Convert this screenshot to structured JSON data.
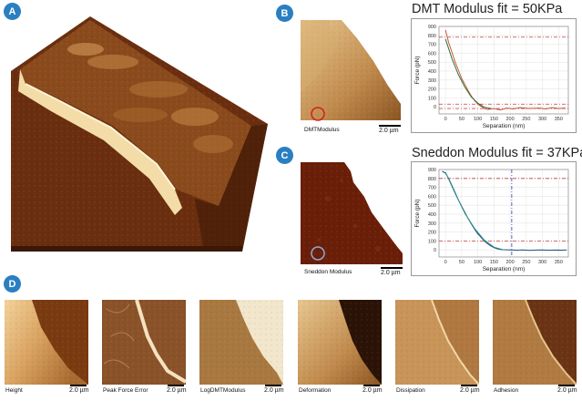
{
  "panels": {
    "a": {
      "label": "A"
    },
    "b": {
      "label": "B",
      "image_caption": "DMTModulus",
      "scale": "2.0 µm"
    },
    "c": {
      "label": "C",
      "image_caption": "Sneddon Modulus",
      "scale": "2.0 µm"
    },
    "d": {
      "label": "D"
    }
  },
  "thumbnails": [
    {
      "caption": "Height",
      "scale": "2.0 µm"
    },
    {
      "caption": "Peak Force Error",
      "scale": "2.0 µm"
    },
    {
      "caption": "LogDMTModulus",
      "scale": "2.0 µm"
    },
    {
      "caption": "Deformation",
      "scale": "2.0 µm"
    },
    {
      "caption": "Dissipation",
      "scale": "2.0 µm"
    },
    {
      "caption": "Adhesion",
      "scale": "2.0 µm"
    }
  ],
  "colors": {
    "badge": "#2a7fc1",
    "dmt_marker": "#d42020",
    "sneddon_marker": "#8fa8d8"
  },
  "chart_data": [
    {
      "type": "line",
      "title": "DMT Modulus fit = 50KPa",
      "xlabel": "Separation (nm)",
      "ylabel": "Force (pN)",
      "xlim": [
        -20,
        380
      ],
      "ylim": [
        -80,
        900
      ],
      "xticks": [
        0,
        50,
        100,
        150,
        200,
        250,
        300,
        350
      ],
      "yticks": [
        0,
        100,
        200,
        300,
        400,
        500,
        600,
        700,
        800,
        900
      ],
      "hlines": [
        780,
        30,
        -20
      ],
      "series": [
        {
          "color": "#c45a3a",
          "x": [
            0,
            10,
            20,
            30,
            40,
            50,
            60,
            70,
            80,
            90,
            100,
            110,
            120,
            130,
            150,
            170,
            190,
            210,
            230,
            260,
            290,
            310,
            330,
            350,
            370
          ],
          "y": [
            860,
            720,
            610,
            500,
            410,
            320,
            250,
            180,
            120,
            70,
            30,
            5,
            -20,
            -30,
            -20,
            -35,
            -15,
            -25,
            -10,
            -20,
            -15,
            -25,
            -10,
            -20,
            -15
          ]
        },
        {
          "color": "#3a6a3a",
          "x": [
            0,
            20,
            40,
            60,
            80,
            100,
            120,
            140
          ],
          "y": [
            760,
            540,
            360,
            220,
            110,
            40,
            -5,
            -20
          ]
        }
      ]
    },
    {
      "type": "line",
      "title": "Sneddon Modulus fit = 37KPa",
      "xlabel": "Separation (nm)",
      "ylabel": "Force (pN)",
      "xlim": [
        -20,
        380
      ],
      "ylim": [
        -80,
        900
      ],
      "xticks": [
        0,
        50,
        100,
        150,
        200,
        250,
        300,
        350
      ],
      "yticks": [
        0,
        100,
        200,
        300,
        400,
        500,
        600,
        700,
        800,
        900
      ],
      "hlines": [
        800,
        100
      ],
      "vline": 205,
      "series": [
        {
          "color": "#1f4f7a",
          "x": [
            -10,
            0,
            10,
            20,
            30,
            40,
            50,
            60,
            70,
            80,
            90,
            100,
            110,
            120,
            130,
            140,
            150,
            160,
            170,
            180,
            200,
            220,
            240,
            260,
            280,
            300,
            320,
            340,
            360,
            375
          ],
          "y": [
            880,
            860,
            800,
            720,
            640,
            560,
            490,
            420,
            350,
            290,
            230,
            180,
            140,
            100,
            70,
            45,
            25,
            12,
            5,
            2,
            0,
            -3,
            0,
            -5,
            -2,
            0,
            -4,
            -2,
            -3,
            0
          ]
        },
        {
          "color": "#2f8f8a",
          "x": [
            0,
            30,
            60,
            90,
            120,
            150,
            180
          ],
          "y": [
            870,
            630,
            410,
            240,
            110,
            30,
            0
          ]
        }
      ]
    }
  ]
}
